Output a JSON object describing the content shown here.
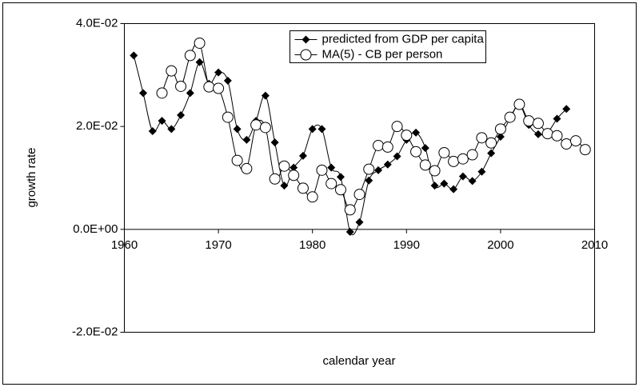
{
  "chart_data": {
    "type": "line",
    "xlabel": "calendar year",
    "ylabel": "growth rate",
    "xlim": [
      1960,
      2010
    ],
    "xticks": [
      1960,
      1970,
      1980,
      1990,
      2000,
      2010
    ],
    "ylim": [
      -0.02,
      0.04
    ],
    "yticks": [
      {
        "value": -0.02,
        "label": "-2.0E-02"
      },
      {
        "value": 0,
        "label": "0.0E+00"
      },
      {
        "value": 0.02,
        "label": "2.0E-02"
      },
      {
        "value": 0.04,
        "label": "4.0E-02"
      }
    ],
    "grid": false,
    "legend": "upper-center",
    "series": [
      {
        "name": "predicted from GDP per capita",
        "color": "#000000",
        "marker": "diamond",
        "x": [
          1961,
          1962,
          1963,
          1964,
          1965,
          1966,
          1967,
          1968,
          1969,
          1970,
          1971,
          1972,
          1973,
          1974,
          1975,
          1976,
          1977,
          1978,
          1979,
          1980,
          1981,
          1982,
          1983,
          1984,
          1985,
          1986,
          1987,
          1988,
          1989,
          1990,
          1991,
          1992,
          1993,
          1994,
          1995,
          1996,
          1997,
          1998,
          1999,
          2000,
          2001,
          2002,
          2003,
          2004,
          2005,
          2006,
          2007
        ],
        "values": [
          0.0338,
          0.0265,
          0.0191,
          0.0211,
          0.0195,
          0.0222,
          0.0265,
          0.0325,
          0.0283,
          0.0305,
          0.0289,
          0.0195,
          0.0174,
          0.0211,
          0.026,
          0.0169,
          0.0085,
          0.012,
          0.0143,
          0.0195,
          0.0195,
          0.012,
          0.0102,
          -0.0005,
          0.0014,
          0.0095,
          0.0115,
          0.0126,
          0.0142,
          0.0174,
          0.0188,
          0.0158,
          0.0085,
          0.0089,
          0.0078,
          0.0103,
          0.0094,
          0.0112,
          0.0148,
          0.018,
          0.0215,
          0.0242,
          0.0203,
          0.0185,
          0.0188,
          0.0215,
          0.0234
        ]
      },
      {
        "name": "MA(5) - CB per person",
        "color": "#000000",
        "marker": "circle",
        "x": [
          1964,
          1965,
          1966,
          1967,
          1968,
          1969,
          1970,
          1971,
          1972,
          1973,
          1974,
          1975,
          1976,
          1977,
          1978,
          1979,
          1980,
          1981,
          1982,
          1983,
          1984,
          1985,
          1986,
          1987,
          1988,
          1989,
          1990,
          1991,
          1992,
          1993,
          1994,
          1995,
          1996,
          1997,
          1998,
          1999,
          2000,
          2001,
          2002,
          2003,
          2004,
          2005,
          2006,
          2007,
          2008,
          2009
        ],
        "values": [
          0.0265,
          0.0308,
          0.0278,
          0.0338,
          0.0362,
          0.0277,
          0.0274,
          0.0218,
          0.0134,
          0.0118,
          0.0203,
          0.0198,
          0.0098,
          0.0123,
          0.0105,
          0.008,
          0.0063,
          0.0115,
          0.0089,
          0.0077,
          0.0038,
          0.0068,
          0.0117,
          0.0163,
          0.016,
          0.02,
          0.0183,
          0.0151,
          0.0125,
          0.0114,
          0.0149,
          0.0132,
          0.0137,
          0.0145,
          0.0178,
          0.0168,
          0.0195,
          0.0218,
          0.0243,
          0.0211,
          0.0206,
          0.0186,
          0.0182,
          0.0166,
          0.0172,
          0.0155
        ]
      }
    ]
  }
}
